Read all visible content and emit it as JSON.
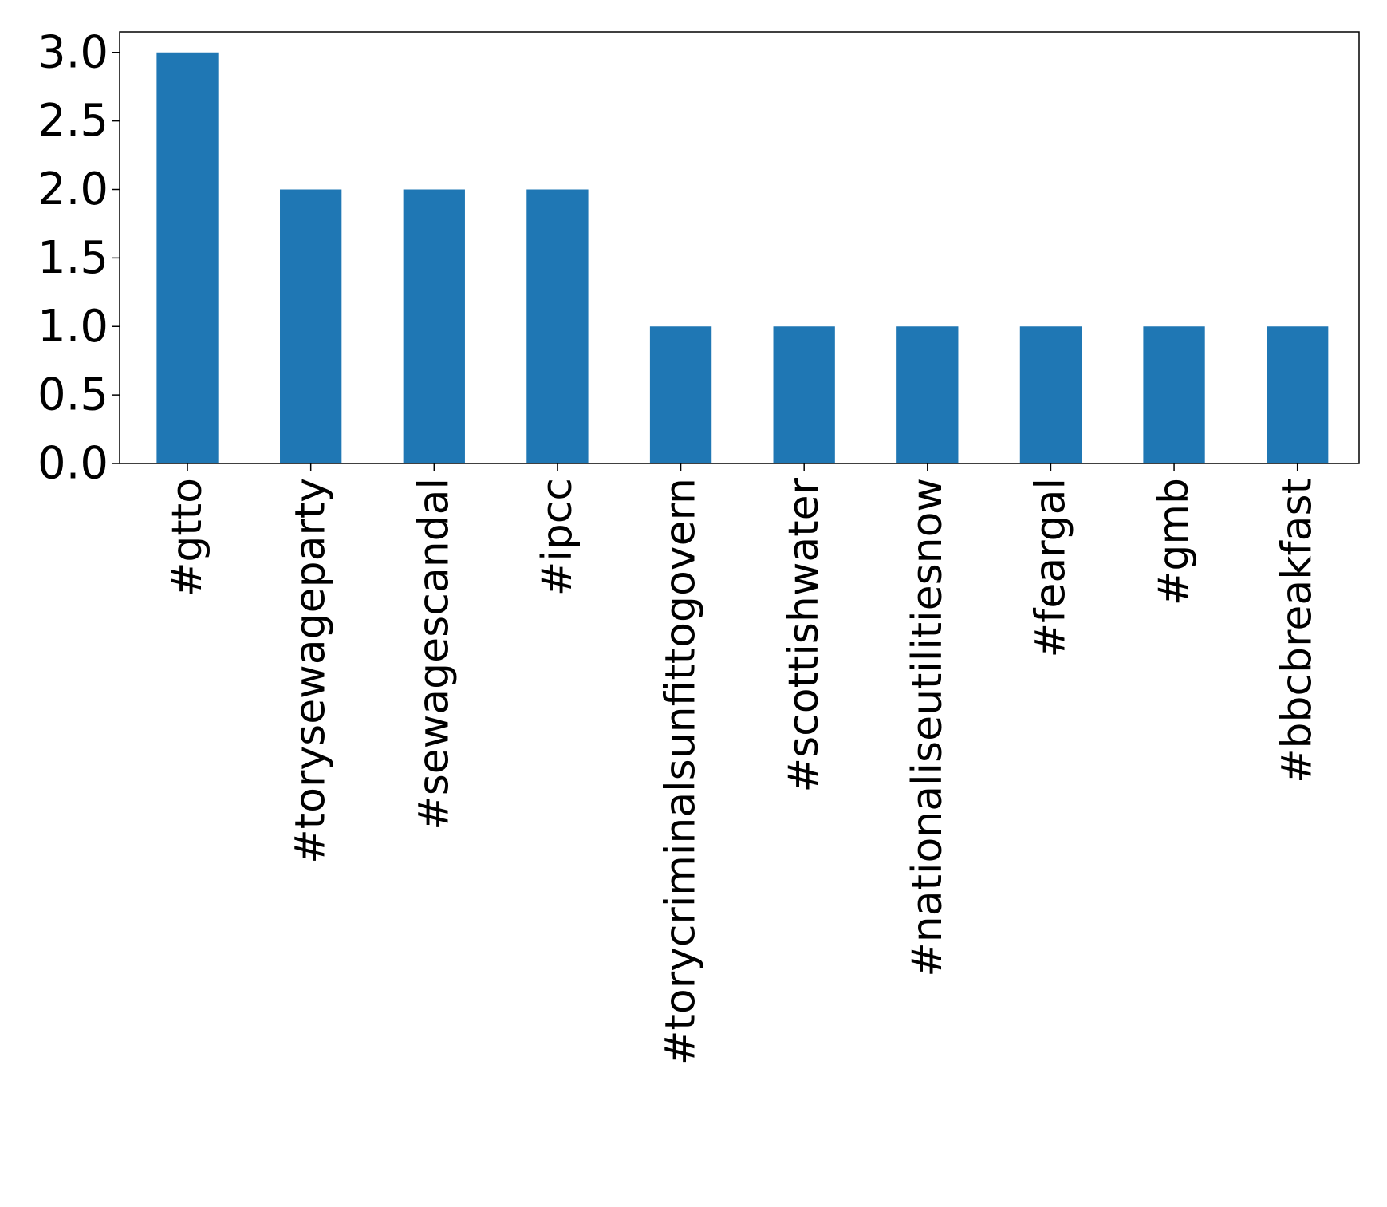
{
  "chart_data": {
    "type": "bar",
    "title": "",
    "xlabel": "",
    "ylabel": "",
    "categories": [
      "#gtto",
      "#torysewageparty",
      "#sewagescandal",
      "#ipcc",
      "#torycriminalsunfittogovern",
      "#scottishwater",
      "#nationaliseutilitiesnow",
      "#feargal",
      "#gmb",
      "#bbcbreakfast"
    ],
    "values": [
      3,
      2,
      2,
      2,
      1,
      1,
      1,
      1,
      1,
      1
    ],
    "ylim": [
      0,
      3.15
    ],
    "yticks": [
      0.0,
      0.5,
      1.0,
      1.5,
      2.0,
      2.5,
      3.0
    ],
    "ytick_labels": [
      "0.0",
      "0.5",
      "1.0",
      "1.5",
      "2.0",
      "2.5",
      "3.0"
    ],
    "bar_color": "#1f77b4",
    "grid": false,
    "legend": "none",
    "xtick_rotation": "vertical"
  }
}
